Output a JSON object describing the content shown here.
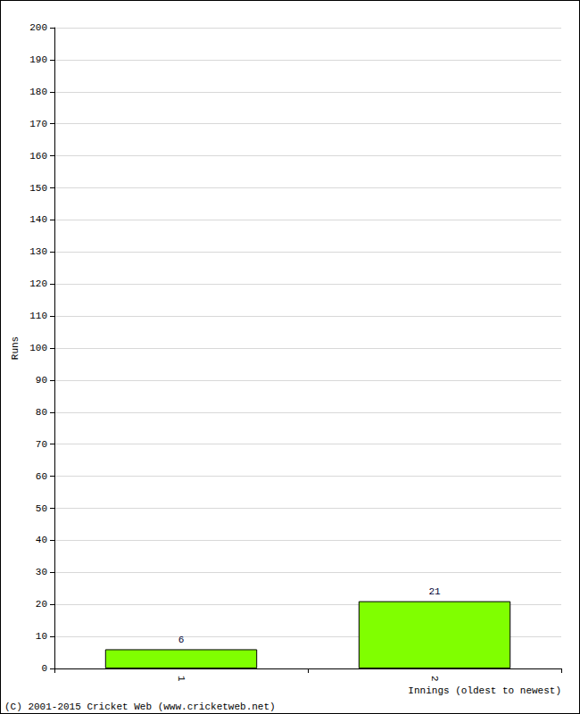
{
  "chart_data": {
    "type": "bar",
    "categories": [
      "1",
      "2"
    ],
    "values": [
      6,
      21
    ],
    "color": "#80ff00",
    "ylim": [
      0,
      200
    ],
    "yticks": [
      0,
      10,
      20,
      30,
      40,
      50,
      60,
      70,
      80,
      90,
      100,
      110,
      120,
      130,
      140,
      150,
      160,
      170,
      180,
      190,
      200
    ],
    "y_label": "Runs",
    "x_label": "Innings (oldest to newest)",
    "annotations": [
      "(C) 2001-2015 Cricket Web (www.cricketweb.net)"
    ],
    "grid": true,
    "data_labels": true
  }
}
